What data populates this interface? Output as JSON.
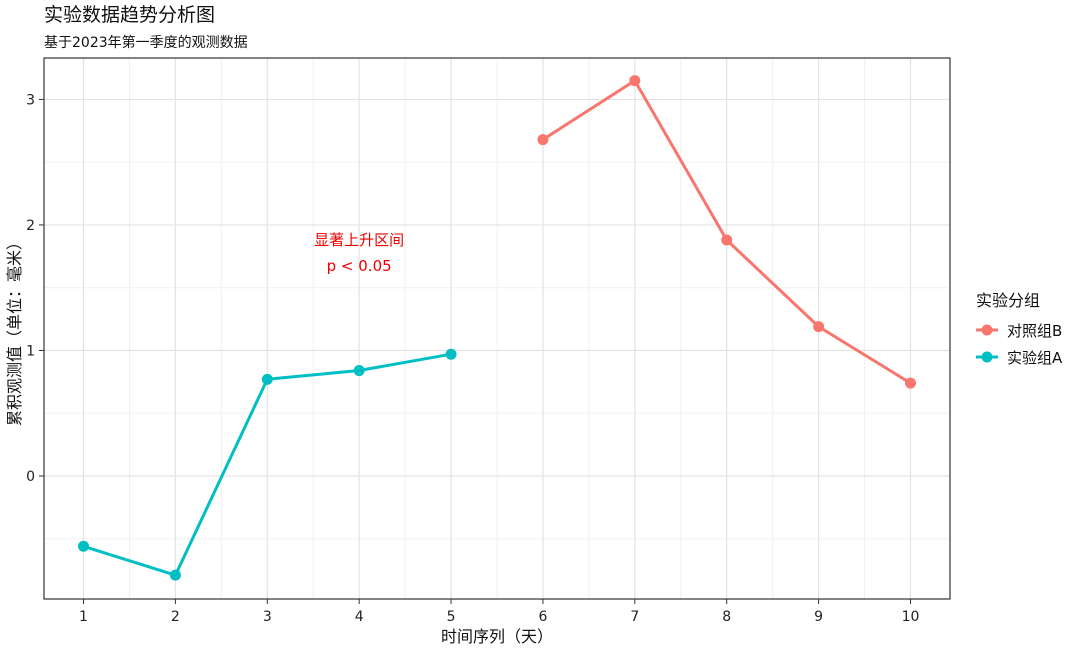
{
  "chart_data": {
    "type": "line",
    "title": "实验数据趋势分析图",
    "subtitle": "基于2023年第一季度的观测数据",
    "xlabel": "时间序列（天）",
    "ylabel": "累积观测值（单位：毫米）",
    "x_ticks": [
      "1",
      "2",
      "3",
      "4",
      "5",
      "6",
      "7",
      "8",
      "9",
      "10"
    ],
    "y_ticks": [
      "0",
      "1",
      "2",
      "3"
    ],
    "xlim": [
      0.57,
      10.43
    ],
    "ylim": [
      -0.98,
      3.33
    ],
    "grid": true,
    "legend_position": "right",
    "legend_title": "实验分组",
    "series": [
      {
        "name": "对照组B",
        "color": "#f8766d",
        "x": [
          6,
          7,
          8,
          9,
          10
        ],
        "y": [
          2.68,
          3.15,
          1.88,
          1.19,
          0.74
        ]
      },
      {
        "name": "实验组A",
        "color": "#00bfc4",
        "x": [
          1,
          2,
          3,
          4,
          5
        ],
        "y": [
          -0.56,
          -0.79,
          0.77,
          0.84,
          0.97
        ]
      }
    ],
    "annotation": {
      "lines": [
        "显著上升区间",
        "p < 0.05"
      ],
      "x": 4,
      "y": 1.8,
      "color": "#ee0000"
    }
  }
}
